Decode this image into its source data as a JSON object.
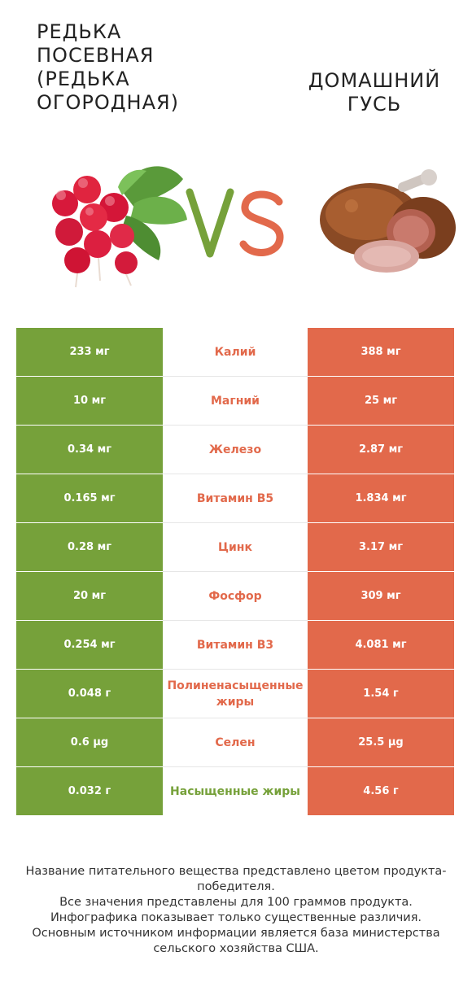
{
  "left_food": {
    "title": "Редька посевная (Редька огородная)",
    "color": "#76a13a",
    "icon": "radish-image"
  },
  "right_food": {
    "title": "Домашний гусь",
    "color": "#e2694b",
    "icon": "goose-meat-image"
  },
  "vs_label": {
    "v": "V",
    "s": "S"
  },
  "chart_data": {
    "type": "table",
    "columns": [
      "Редька посевная (Редька огородная)",
      "",
      "Домашний гусь"
    ],
    "rows": [
      {
        "nutrient": "Калий",
        "left": "233 мг",
        "right": "388 мг",
        "winner": "right"
      },
      {
        "nutrient": "Магний",
        "left": "10 мг",
        "right": "25 мг",
        "winner": "right"
      },
      {
        "nutrient": "Железо",
        "left": "0.34 мг",
        "right": "2.87 мг",
        "winner": "right"
      },
      {
        "nutrient": "Витамин B5",
        "left": "0.165 мг",
        "right": "1.834 мг",
        "winner": "right"
      },
      {
        "nutrient": "Цинк",
        "left": "0.28 мг",
        "right": "3.17 мг",
        "winner": "right"
      },
      {
        "nutrient": "Фосфор",
        "left": "20 мг",
        "right": "309 мг",
        "winner": "right"
      },
      {
        "nutrient": "Витамин B3",
        "left": "0.254 мг",
        "right": "4.081 мг",
        "winner": "right"
      },
      {
        "nutrient": "Полиненасыщенные жиры",
        "left": "0.048 г",
        "right": "1.54 г",
        "winner": "right"
      },
      {
        "nutrient": "Селен",
        "left": "0.6 µg",
        "right": "25.5 µg",
        "winner": "right"
      },
      {
        "nutrient": "Насыщенные жиры",
        "left": "0.032 г",
        "right": "4.56 г",
        "winner": "left"
      }
    ]
  },
  "notes": [
    "Название питательного вещества представлено цветом продукта-победителя.",
    "Все значения представлены для 100 граммов продукта.",
    "Инфографика показывает только существенные различия.",
    "Основным источником информации является база министерства сельского хозяйства США."
  ]
}
